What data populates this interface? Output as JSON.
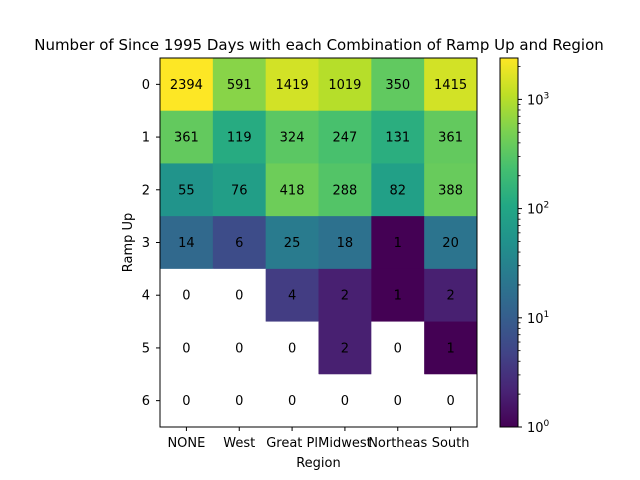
{
  "chart_data": {
    "type": "heatmap",
    "title": "Number of Since 1995 Days with each Combination of Ramp Up and Region",
    "xlabel": "Region",
    "ylabel": "Ramp Up",
    "x_categories": [
      "NONE",
      "West",
      "Great Pl",
      "Midwest",
      "Northeas",
      "South"
    ],
    "y_categories": [
      "0",
      "1",
      "2",
      "3",
      "4",
      "5",
      "6"
    ],
    "values": [
      [
        2394,
        591,
        1419,
        1019,
        350,
        1415
      ],
      [
        361,
        119,
        324,
        247,
        131,
        361
      ],
      [
        55,
        76,
        418,
        288,
        82,
        388
      ],
      [
        14,
        6,
        25,
        18,
        1,
        20
      ],
      [
        0,
        0,
        4,
        2,
        1,
        2
      ],
      [
        0,
        0,
        0,
        2,
        0,
        1
      ],
      [
        0,
        0,
        0,
        0,
        0,
        0
      ]
    ],
    "color_scale": "log",
    "colormap": "viridis",
    "zero_color": "#ffffff",
    "colorbar": {
      "range": [
        1,
        2394
      ],
      "tick_base": "10",
      "tick_exponents": [
        "0",
        "1",
        "2",
        "3"
      ]
    }
  }
}
